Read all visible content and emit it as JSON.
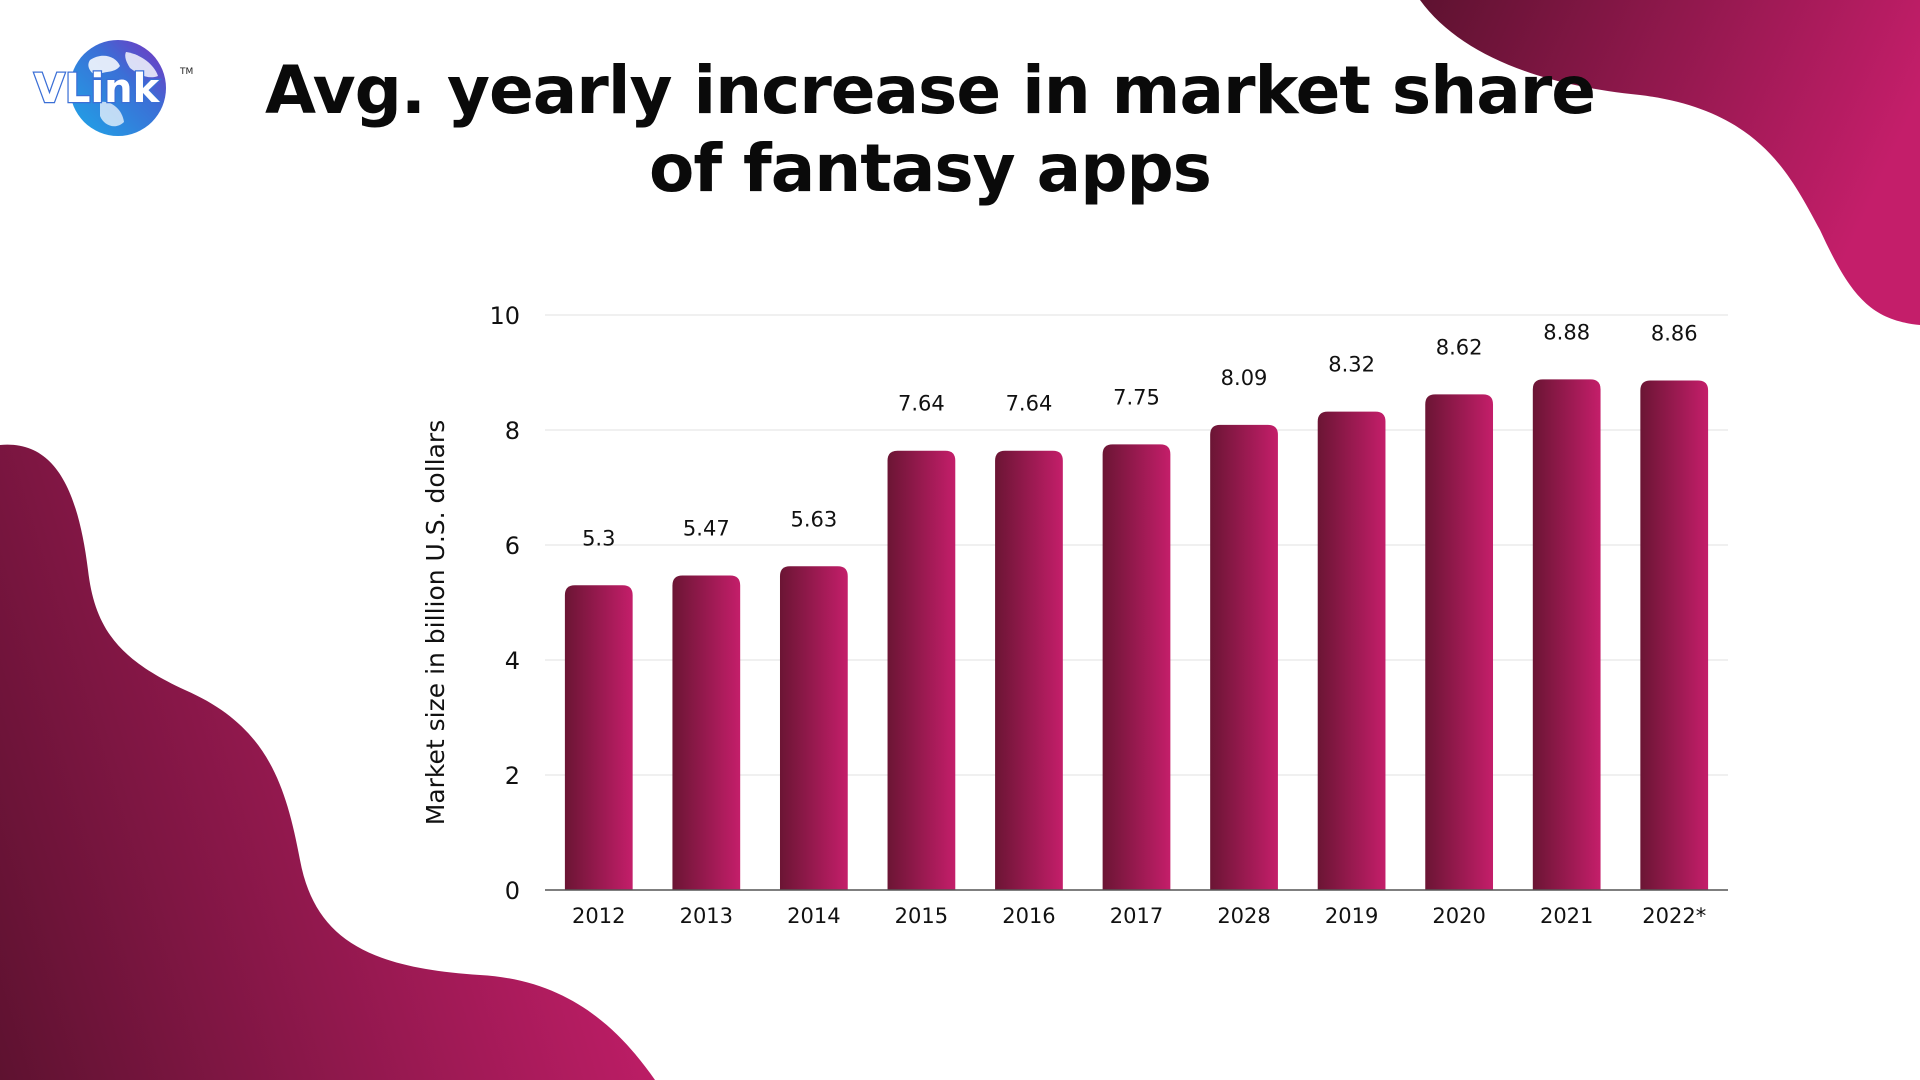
{
  "logo": {
    "text": "VLink",
    "trademark": "TM",
    "icon": "globe-icon"
  },
  "title": {
    "line1": "Avg. yearly increase in market share",
    "line2": "of fantasy apps"
  },
  "colors": {
    "bar_dark": "#6b1534",
    "bar_light": "#c41e6a",
    "blob_dark": "#5e1230",
    "blob_light": "#c41e6a",
    "gridline": "#e6e6e6",
    "axis": "#555555",
    "text": "#111111"
  },
  "chart_data": {
    "type": "bar",
    "title": "Avg. yearly increase in market share of fantasy apps",
    "xlabel": "",
    "ylabel": "Market size in billion U.S. dollars",
    "categories": [
      "2012",
      "2013",
      "2014",
      "2015",
      "2016",
      "2017",
      "2028",
      "2019",
      "2020",
      "2021",
      "2022*"
    ],
    "values": [
      5.3,
      5.47,
      5.63,
      7.64,
      7.64,
      7.75,
      8.09,
      8.32,
      8.62,
      8.88,
      8.86
    ],
    "data_labels": [
      "5.3",
      "5.47",
      "5.63",
      "7.64",
      "7.64",
      "7.75",
      "8.09",
      "8.32",
      "8.62",
      "8.88",
      "8.86"
    ],
    "ylim": [
      0,
      10
    ],
    "yticks": [
      "0",
      "2",
      "4",
      "6",
      "8",
      "10"
    ],
    "grid": true,
    "legend": "none"
  }
}
